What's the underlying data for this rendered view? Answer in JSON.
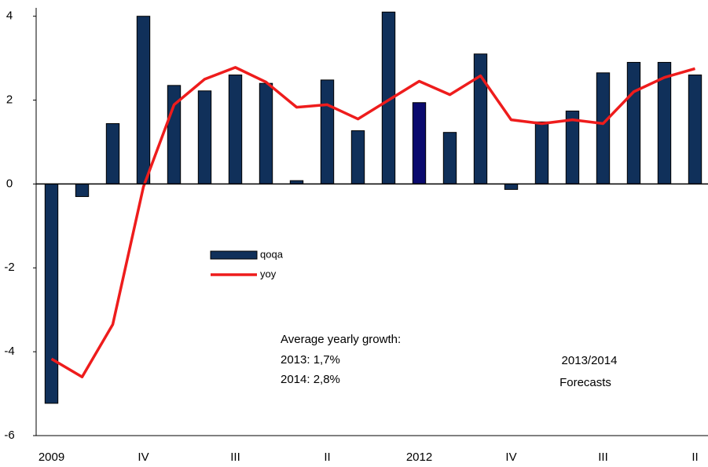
{
  "chart_data": {
    "type": "bar",
    "categories": [
      "2009",
      null,
      null,
      "IV",
      null,
      null,
      "III",
      null,
      null,
      "II",
      null,
      null,
      "2012",
      null,
      null,
      "IV",
      null,
      null,
      "III",
      null,
      null,
      "II"
    ],
    "series": [
      {
        "name": "qoqa",
        "type": "bar",
        "color": "#10305a",
        "colors": [
          "#10305a",
          "#10305a",
          "#10305a",
          "#10305a",
          "#10305a",
          "#10305a",
          "#10305a",
          "#10305a",
          "#10305a",
          "#10305a",
          "#10305a",
          "#10305a",
          "#0a0a6e",
          "#10305a",
          "#10305a",
          "#10305a",
          "#10305a",
          "#10305a",
          "#10305a",
          "#10305a",
          "#10305a",
          "#10305a"
        ],
        "values": [
          -5.23,
          -0.3,
          1.44,
          4.0,
          2.35,
          2.22,
          2.6,
          2.4,
          0.08,
          2.48,
          1.27,
          4.1,
          1.94,
          1.23,
          3.1,
          -0.13,
          1.48,
          1.74,
          2.65,
          2.9,
          2.9,
          2.6
        ]
      },
      {
        "name": "yoy",
        "type": "line",
        "color": "#ee1c1c",
        "values": [
          -4.17,
          -4.6,
          -3.35,
          -0.07,
          1.89,
          2.5,
          2.78,
          2.43,
          1.83,
          1.89,
          1.55,
          2.0,
          2.45,
          2.13,
          2.58,
          1.53,
          1.44,
          1.53,
          1.44,
          2.2,
          2.54,
          2.75
        ]
      }
    ],
    "ylim": [
      -6,
      4.2
    ],
    "yticks": [
      -6,
      -4,
      -2,
      0,
      2,
      4
    ],
    "grid": false,
    "annotations": [
      "Average yearly growth:",
      "2013: 1,7%",
      "2014: 2,8%",
      "2013/2014",
      "Forecasts"
    ]
  }
}
